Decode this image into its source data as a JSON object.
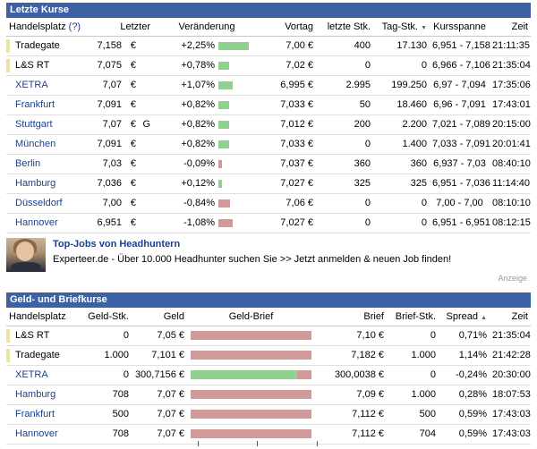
{
  "kurse": {
    "title": "Letzte Kurse",
    "headers": {
      "place": "Handelsplatz",
      "help": "(?)",
      "last": "Letzter",
      "change": "Veränderung",
      "prev": "Vortag",
      "last_qty": "letzte Stk.",
      "day_qty": "Tag-Stk.",
      "range": "Kursspanne",
      "time": "Zeit"
    },
    "rows": [
      {
        "place": "Tradegate",
        "link": false,
        "hl": true,
        "last": "7,158",
        "unit": "€",
        "flag": "",
        "change": "+2,25%",
        "pct": 2.25,
        "prev": "7,00 €",
        "last_qty": "400",
        "day_qty": "17.130",
        "range": "6,951 - 7,158",
        "time": "21:11:35"
      },
      {
        "place": "L&S RT",
        "link": false,
        "hl": true,
        "last": "7,075",
        "unit": "€",
        "flag": "",
        "change": "+0,78%",
        "pct": 0.78,
        "prev": "7,02 €",
        "last_qty": "0",
        "day_qty": "0",
        "range": "6,966 - 7,106",
        "time": "21:35:04"
      },
      {
        "place": "XETRA",
        "link": true,
        "hl": false,
        "last": "7,07",
        "unit": "€",
        "flag": "",
        "change": "+1,07%",
        "pct": 1.07,
        "prev": "6,995 €",
        "last_qty": "2.995",
        "day_qty": "199.250",
        "range": "6,97 - 7,094",
        "time": "17:35:06"
      },
      {
        "place": "Frankfurt",
        "link": true,
        "hl": false,
        "last": "7,091",
        "unit": "€",
        "flag": "",
        "change": "+0,82%",
        "pct": 0.82,
        "prev": "7,033 €",
        "last_qty": "50",
        "day_qty": "18.460",
        "range": "6,96 - 7,091",
        "time": "17:43:01"
      },
      {
        "place": "Stuttgart",
        "link": true,
        "hl": false,
        "last": "7,07",
        "unit": "€",
        "flag": "G",
        "change": "+0,82%",
        "pct": 0.82,
        "prev": "7,012 €",
        "last_qty": "200",
        "day_qty": "2.200",
        "range": "7,021 - 7,089",
        "time": "20:15:00"
      },
      {
        "place": "München",
        "link": true,
        "hl": false,
        "last": "7,091",
        "unit": "€",
        "flag": "",
        "change": "+0,82%",
        "pct": 0.82,
        "prev": "7,033 €",
        "last_qty": "0",
        "day_qty": "1.400",
        "range": "7,033 - 7,091",
        "time": "20:01:41"
      },
      {
        "place": "Berlin",
        "link": true,
        "hl": false,
        "last": "7,03",
        "unit": "€",
        "flag": "",
        "change": "-0,09%",
        "pct": -0.09,
        "prev": "7,037 €",
        "last_qty": "360",
        "day_qty": "360",
        "range": "6,937 - 7,03",
        "time": "08:40:10"
      },
      {
        "place": "Hamburg",
        "link": true,
        "hl": false,
        "last": "7,036",
        "unit": "€",
        "flag": "",
        "change": "+0,12%",
        "pct": 0.12,
        "prev": "7,027 €",
        "last_qty": "325",
        "day_qty": "325",
        "range": "6,951 - 7,036",
        "time": "11:14:40"
      },
      {
        "place": "Düsseldorf",
        "link": true,
        "hl": false,
        "last": "7,00",
        "unit": "€",
        "flag": "",
        "change": "-0,84%",
        "pct": -0.84,
        "prev": "7,06 €",
        "last_qty": "0",
        "day_qty": "0",
        "range": "7,00 - 7,00",
        "time": "08:10:10"
      },
      {
        "place": "Hannover",
        "link": true,
        "hl": false,
        "last": "6,951",
        "unit": "€",
        "flag": "",
        "change": "-1,08%",
        "pct": -1.08,
        "prev": "7,027 €",
        "last_qty": "0",
        "day_qty": "0",
        "range": "6,951 - 6,951",
        "time": "08:12:15"
      }
    ]
  },
  "ad": {
    "title": "Top-Jobs von Headhuntern",
    "text": "Experteer.de - Über 10.000 Headhunter suchen Sie >> Jetzt anmelden & neuen Job finden!",
    "label": "Anzeige"
  },
  "geldbrief": {
    "title": "Geld- und Briefkurse",
    "headers": {
      "place": "Handelsplatz",
      "bid_qty": "Geld-Stk.",
      "bid": "Geld",
      "bar": "Geld-Brief",
      "ask": "Brief",
      "ask_qty": "Brief-Stk.",
      "spread": "Spread",
      "time": "Zeit"
    },
    "rows": [
      {
        "place": "L&S RT",
        "link": false,
        "hl": true,
        "bid_qty": "0",
        "bid": "7,05 €",
        "bid_share": 0.0,
        "ask": "7,10 €",
        "ask_qty": "0",
        "spread": "0,71%",
        "time": "21:35:04"
      },
      {
        "place": "Tradegate",
        "link": false,
        "hl": true,
        "bid_qty": "1.000",
        "bid": "7,101 €",
        "bid_share": 0.0,
        "ask": "7,182 €",
        "ask_qty": "1.000",
        "spread": "1,14%",
        "time": "21:42:28"
      },
      {
        "place": "XETRA",
        "link": true,
        "hl": false,
        "bid_qty": "0",
        "bid": "300,7156 €",
        "bid_share": 0.88,
        "ask": "300,0038 €",
        "ask_qty": "0",
        "spread": "-0,24%",
        "time": "20:30:00"
      },
      {
        "place": "Hamburg",
        "link": true,
        "hl": false,
        "bid_qty": "708",
        "bid": "7,07 €",
        "bid_share": 0.0,
        "ask": "7,09 €",
        "ask_qty": "1.000",
        "spread": "0,28%",
        "time": "18:07:53"
      },
      {
        "place": "Frankfurt",
        "link": true,
        "hl": false,
        "bid_qty": "500",
        "bid": "7,07 €",
        "bid_share": 0.0,
        "ask": "7,112 €",
        "ask_qty": "500",
        "spread": "0,59%",
        "time": "17:43:03"
      },
      {
        "place": "Hannover",
        "link": true,
        "hl": false,
        "bid_qty": "708",
        "bid": "7,07 €",
        "bid_share": 0.0,
        "ask": "7,112 €",
        "ask_qty": "704",
        "spread": "0,59%",
        "time": "17:43:03"
      }
    ]
  },
  "colors": {
    "header_bg": "#3c62a5",
    "link": "#1a3f8e",
    "positive": "#8fd18f",
    "negative": "#d19a9a",
    "highlight": "#eae3a1"
  }
}
